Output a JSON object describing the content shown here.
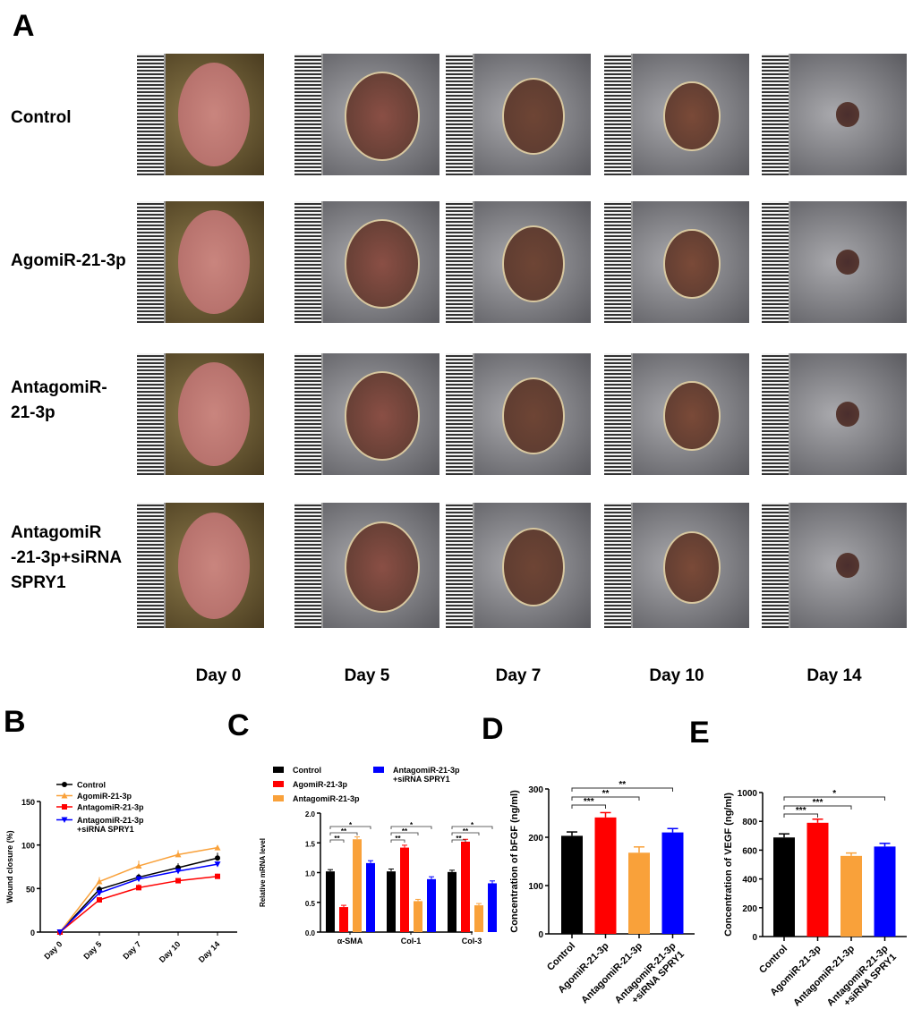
{
  "panel_labels": [
    "A",
    "B",
    "C",
    "D",
    "E"
  ],
  "panelA": {
    "rows": [
      "Control",
      "AgomiR-21-3p",
      "AntagomiR-\n    21-3p",
      "AntagomiR\n-21-3p+siRNA\nSPRY1"
    ],
    "columns": [
      "Day 0",
      "Day 5",
      "Day 7",
      "Day 10",
      "Day 14"
    ]
  },
  "colors": {
    "Control": "#000000",
    "AgomiR-21-3p": "#f9a13a",
    "AntagomiR-21-3p": "#ff0000",
    "AntagomiR-21-3p+siRNA SPRY1": "#0000ff"
  },
  "chart_data": [
    {
      "panel": "B",
      "type": "line",
      "ylabel": "Wound closure (%)",
      "ylim": [
        0,
        150
      ],
      "yticks": [
        0,
        50,
        100,
        150
      ],
      "categories": [
        "Day 0",
        "Day 5",
        "Day 7",
        "Day 10",
        "Day 14"
      ],
      "legend": "top-left",
      "series": [
        {
          "name": "Control",
          "color": "#000000",
          "marker": "circle",
          "values": [
            0,
            49,
            63,
            74,
            85
          ],
          "errors": [
            0,
            4,
            4,
            5,
            6
          ]
        },
        {
          "name": "AgomiR-21-3p",
          "color": "#f9a13a",
          "marker": "triangle-up",
          "values": [
            0,
            58,
            76,
            89,
            97
          ],
          "errors": [
            0,
            5,
            6,
            5,
            2
          ]
        },
        {
          "name": "AntagomiR-21-3p",
          "color": "#ff0000",
          "marker": "square",
          "values": [
            0,
            37,
            51,
            59,
            64
          ],
          "errors": [
            0,
            3,
            4,
            2,
            3
          ]
        },
        {
          "name": "AntagomiR-21-3p\n+siRNA SPRY1",
          "color": "#0000ff",
          "marker": "triangle-down",
          "values": [
            0,
            45,
            61,
            70,
            78
          ],
          "errors": [
            0,
            3,
            3,
            3,
            3
          ]
        }
      ]
    },
    {
      "panel": "C",
      "type": "bar",
      "ylabel": "Relative mRNA level",
      "ylim": [
        0,
        2.0
      ],
      "yticks": [
        "0.0",
        "0.5",
        "1.0",
        "1.5",
        "2.0"
      ],
      "categories": [
        "α-SMA",
        "Col-1",
        "Col-3"
      ],
      "legend": "top",
      "series": [
        {
          "name": "Control",
          "color": "#000000",
          "values": [
            1.02,
            1.02,
            1.01
          ],
          "errors": [
            0.03,
            0.04,
            0.03
          ]
        },
        {
          "name": "AgomiR-21-3p",
          "color": "#ff0000",
          "values": [
            0.42,
            1.42,
            1.52
          ],
          "errors": [
            0.03,
            0.04,
            0.04
          ]
        },
        {
          "name": "AntagomiR-21-3p",
          "color": "#f9a13a",
          "values": [
            1.56,
            0.52,
            0.45
          ],
          "errors": [
            0.04,
            0.03,
            0.03
          ]
        },
        {
          "name": "AntagomiR-21-3p\n+siRNA SPRY1",
          "color": "#0000ff",
          "values": [
            1.16,
            0.89,
            0.82
          ],
          "errors": [
            0.04,
            0.04,
            0.04
          ]
        }
      ],
      "significance": [
        [
          "**",
          "**",
          "*"
        ],
        [
          "**",
          "**",
          "*"
        ],
        [
          "**",
          "**",
          "*"
        ]
      ]
    },
    {
      "panel": "D",
      "type": "bar",
      "ylabel": "Concentration of bFGF (ng/ml)",
      "ylim": [
        0,
        300
      ],
      "yticks": [
        0,
        100,
        200,
        300
      ],
      "categories": [
        "Control",
        "AgomiR-21-3p",
        "AntagomiR-21-3p",
        "AntagomiR-21-3p\n+siRNA SPRY1"
      ],
      "values": [
        203,
        241,
        168,
        210
      ],
      "errors": [
        8,
        10,
        12,
        8
      ],
      "colors": [
        "#000000",
        "#ff0000",
        "#f9a13a",
        "#0000ff"
      ],
      "significance": [
        "***",
        "**",
        "**"
      ]
    },
    {
      "panel": "E",
      "type": "bar",
      "ylabel": "Concentration of VEGF (ng/ml)",
      "ylim": [
        0,
        1000
      ],
      "yticks": [
        0,
        200,
        400,
        600,
        800,
        1000
      ],
      "categories": [
        "Control",
        "AgomiR-21-3p",
        "AntagomiR-21-3p",
        "AntagomiR-21-3p\n+siRNA SPRY1"
      ],
      "values": [
        688,
        790,
        560,
        625
      ],
      "errors": [
        25,
        25,
        20,
        22
      ],
      "colors": [
        "#000000",
        "#ff0000",
        "#f9a13a",
        "#0000ff"
      ],
      "significance": [
        "***",
        "***",
        "*"
      ]
    }
  ]
}
